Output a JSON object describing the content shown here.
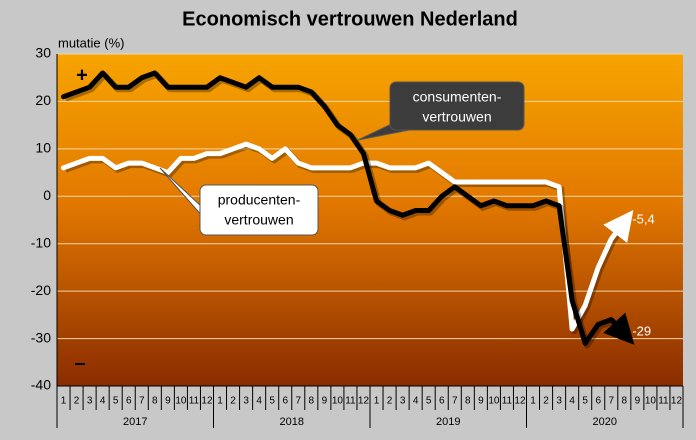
{
  "chart_data": {
    "type": "line",
    "title": "Economisch vertrouwen Nederland",
    "ylabel": "mutatie (%)",
    "categories": [
      "1",
      "2",
      "3",
      "4",
      "5",
      "6",
      "7",
      "8",
      "9",
      "10",
      "11",
      "12",
      "1",
      "2",
      "3",
      "4",
      "5",
      "6",
      "7",
      "8",
      "9",
      "10",
      "11",
      "12",
      "1",
      "2",
      "3",
      "4",
      "5",
      "6",
      "7",
      "8",
      "9",
      "10",
      "11",
      "12",
      "1",
      "2",
      "3",
      "4",
      "5",
      "6",
      "7",
      "8",
      "9",
      "10",
      "11",
      "12"
    ],
    "years": [
      "2017",
      "2018",
      "2019",
      "2020"
    ],
    "ylim": [
      -40,
      30
    ],
    "yticks": [
      30,
      20,
      10,
      0,
      -10,
      -20,
      -30,
      -40
    ],
    "grid": true,
    "series": [
      {
        "color": "#ffffff",
        "values": [
          6,
          7,
          8,
          8,
          6,
          7,
          7,
          6,
          5,
          8,
          8,
          9,
          9,
          10,
          11,
          10,
          8,
          10,
          7,
          6,
          6,
          6,
          6,
          7,
          7,
          6,
          6,
          6,
          7,
          5,
          3,
          3,
          3,
          3,
          3,
          3,
          3,
          3,
          2,
          -28,
          -23,
          -15,
          -9,
          -5.4,
          null,
          null,
          null,
          null
        ],
        "value_labels": [
          null,
          null,
          null,
          null,
          null,
          null,
          null,
          null,
          null,
          null,
          null,
          null,
          null,
          null,
          null,
          null,
          null,
          null,
          null,
          null,
          null,
          null,
          null,
          null,
          null,
          null,
          null,
          null,
          null,
          null,
          null,
          null,
          null,
          null,
          null,
          null,
          null,
          null,
          null,
          null,
          null,
          null,
          null,
          "-5,4",
          null,
          null,
          null,
          null
        ]
      },
      {
        "color": "#000000",
        "values": [
          21,
          22,
          23,
          26,
          23,
          23,
          25,
          26,
          23,
          23,
          23,
          23,
          25,
          24,
          23,
          25,
          23,
          23,
          23,
          22,
          19,
          15,
          13,
          9,
          -1,
          -3,
          -4,
          -3,
          -3,
          0,
          2,
          0,
          -2,
          -1,
          -2,
          -2,
          -2,
          -1,
          -2,
          -22,
          -31,
          -27,
          -26,
          -29,
          null,
          null,
          null,
          null
        ],
        "value_labels": [
          null,
          null,
          null,
          null,
          null,
          null,
          null,
          null,
          null,
          null,
          null,
          null,
          null,
          null,
          null,
          null,
          null,
          null,
          null,
          null,
          null,
          null,
          null,
          null,
          null,
          null,
          null,
          null,
          null,
          null,
          null,
          null,
          null,
          null,
          null,
          null,
          null,
          null,
          null,
          null,
          null,
          null,
          null,
          "-29",
          null,
          null,
          null,
          null
        ]
      }
    ],
    "annotations": [
      {
        "lines": [
          "consumenten-",
          "vertrouwen"
        ]
      },
      {
        "lines": [
          "producenten-",
          "vertrouwen"
        ]
      }
    ],
    "signs": [
      "+",
      "–"
    ]
  }
}
